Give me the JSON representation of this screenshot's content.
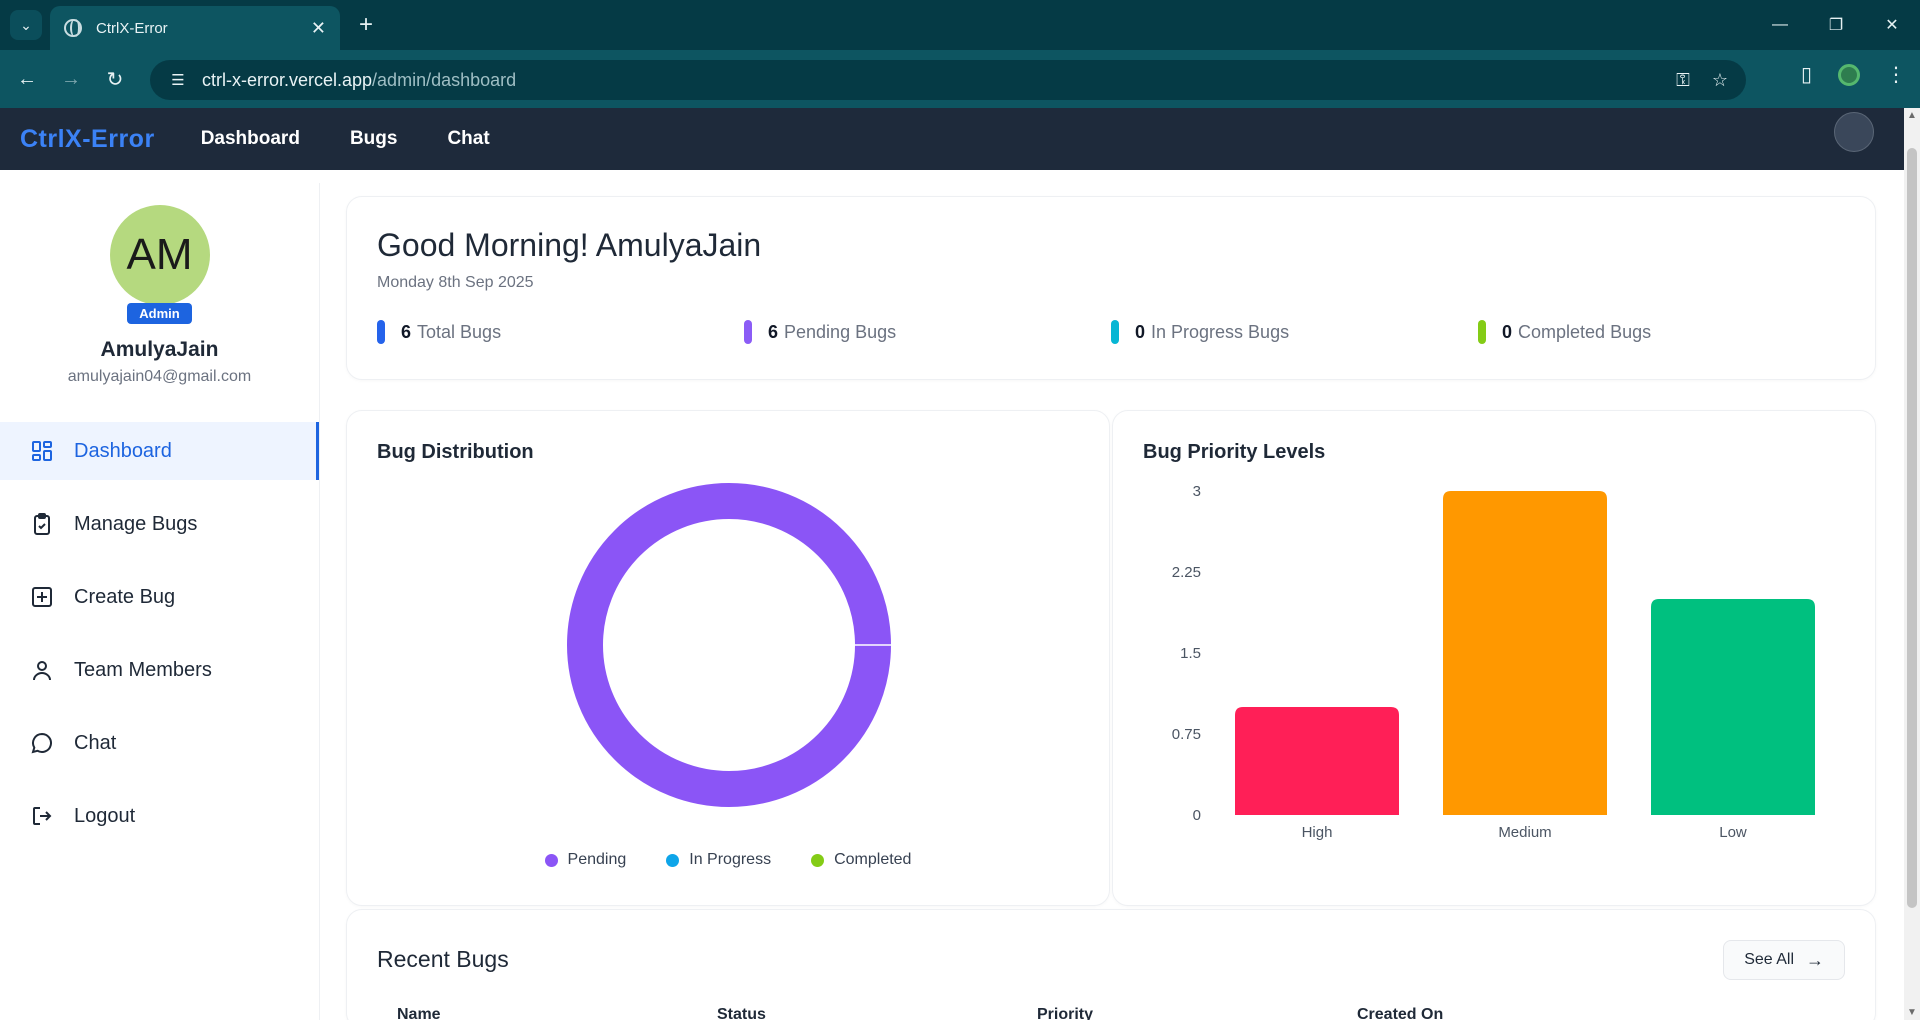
{
  "browser": {
    "tab_title": "CtrlX-Error",
    "url_host": "ctrl-x-error.vercel.app",
    "url_path": "/admin/dashboard"
  },
  "app": {
    "brand": "CtrlX-Error",
    "nav": [
      "Dashboard",
      "Bugs",
      "Chat"
    ]
  },
  "profile": {
    "initials": "AM",
    "role": "Admin",
    "name": "AmulyaJain",
    "email": "amulyajain04@gmail.com"
  },
  "sidebar": {
    "items": [
      {
        "label": "Dashboard",
        "icon": "dashboard-grid-icon",
        "active": true
      },
      {
        "label": "Manage Bugs",
        "icon": "clipboard-check-icon"
      },
      {
        "label": "Create Bug",
        "icon": "plus-square-icon"
      },
      {
        "label": "Team Members",
        "icon": "user-icon"
      },
      {
        "label": "Chat",
        "icon": "chat-bubble-icon"
      },
      {
        "label": "Logout",
        "icon": "logout-icon"
      }
    ]
  },
  "greeting": {
    "title": "Good Morning! AmulyaJain",
    "date": "Monday 8th Sep 2025",
    "stats": [
      {
        "count": "6",
        "label": "Total Bugs",
        "color": "#2563eb"
      },
      {
        "count": "6",
        "label": "Pending Bugs",
        "color": "#8b5cf6"
      },
      {
        "count": "0",
        "label": "In Progress Bugs",
        "color": "#06b6d4"
      },
      {
        "count": "0",
        "label": "Completed Bugs",
        "color": "#84cc16"
      }
    ]
  },
  "chart_data": [
    {
      "type": "pie",
      "title": "Bug Distribution",
      "labels": [
        "Pending",
        "In Progress",
        "Completed"
      ],
      "values": [
        6,
        0,
        0
      ],
      "colors": [
        "#8b55f6",
        "#0ea5e9",
        "#84cc16"
      ],
      "legend": "bottom"
    },
    {
      "type": "bar",
      "title": "Bug Priority Levels",
      "categories": [
        "High",
        "Medium",
        "Low"
      ],
      "values": [
        1,
        3,
        2
      ],
      "colors": [
        "#ff1f57",
        "#ff9800",
        "#00c07f"
      ],
      "ylim": [
        0,
        3
      ],
      "yticks": [
        "0",
        "0.75",
        "1.5",
        "2.25",
        "3"
      ]
    }
  ],
  "recent": {
    "title": "Recent Bugs",
    "see_all": "See All",
    "columns": [
      "Name",
      "Status",
      "Priority",
      "Created On"
    ]
  }
}
